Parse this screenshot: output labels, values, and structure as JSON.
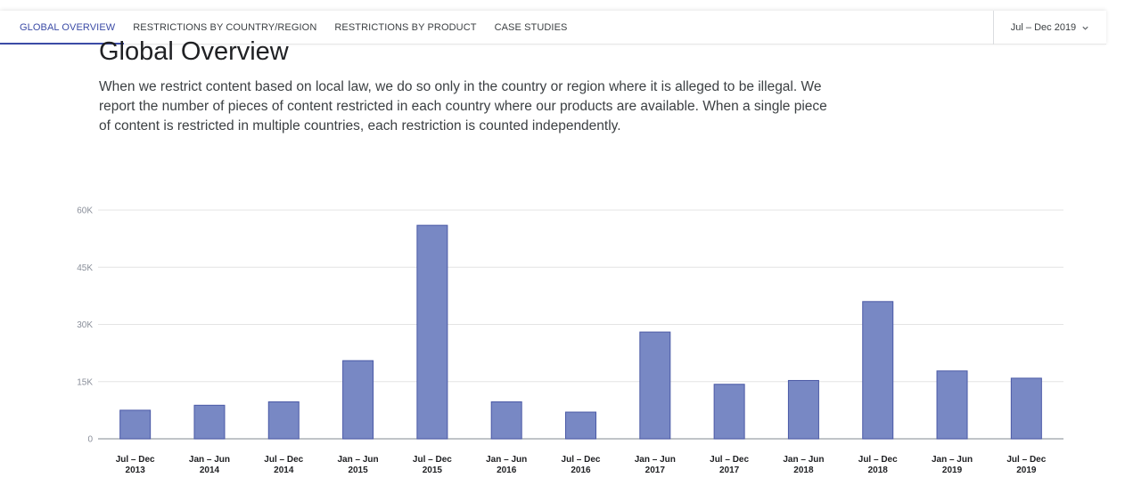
{
  "nav": {
    "tabs": [
      {
        "label": "GLOBAL OVERVIEW",
        "active": true
      },
      {
        "label": "RESTRICTIONS BY COUNTRY/REGION",
        "active": false
      },
      {
        "label": "RESTRICTIONS BY PRODUCT",
        "active": false
      },
      {
        "label": "CASE STUDIES",
        "active": false
      }
    ],
    "period": "Jul – Dec 2019",
    "period_icon": "chevron-down-icon"
  },
  "main": {
    "title": "Global Overview",
    "description": "When we restrict content based on local law, we do so only in the country or region where it is alleged to be illegal. We report the number of pieces of content restricted in each country where our products are available. When a single piece of content is restricted in multiple countries, each restriction is counted independently."
  },
  "colors": {
    "accent": "#3b4ba6",
    "bar": "#7888c4",
    "bar_border": "#4a59a6",
    "grid": "#e4e4e4",
    "axis": "#9aa0a6"
  },
  "chart_data": {
    "type": "bar",
    "categories": [
      [
        "Jul – Dec",
        "2013"
      ],
      [
        "Jan – Jun",
        "2014"
      ],
      [
        "Jul – Dec",
        "2014"
      ],
      [
        "Jan – Jun",
        "2015"
      ],
      [
        "Jul – Dec",
        "2015"
      ],
      [
        "Jan – Jun",
        "2016"
      ],
      [
        "Jul – Dec",
        "2016"
      ],
      [
        "Jan – Jun",
        "2017"
      ],
      [
        "Jul – Dec",
        "2017"
      ],
      [
        "Jan – Jun",
        "2018"
      ],
      [
        "Jul – Dec",
        "2018"
      ],
      [
        "Jan – Jun",
        "2019"
      ],
      [
        "Jul – Dec",
        "2019"
      ]
    ],
    "values": [
      7500,
      8800,
      9700,
      20500,
      56000,
      9700,
      7000,
      28000,
      14300,
      15300,
      36000,
      17800,
      15900
    ],
    "yticks": [
      0,
      15000,
      30000,
      45000,
      60000
    ],
    "ytick_labels": [
      "0",
      "15K",
      "30K",
      "45K",
      "60K"
    ],
    "ylim": [
      0,
      60000
    ],
    "grid": true,
    "legend": "none"
  }
}
